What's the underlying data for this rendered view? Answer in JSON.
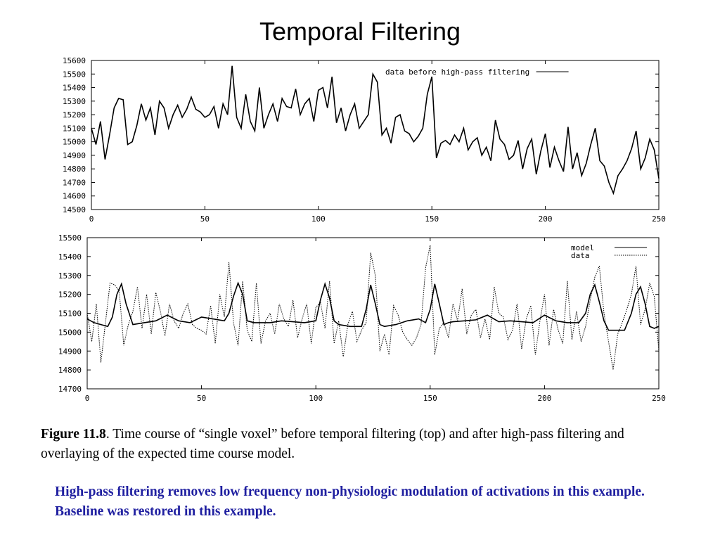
{
  "title": "Temporal Filtering",
  "caption": {
    "figure_label": "Figure 11.8",
    "text": ".  Time course of “single voxel” before temporal filtering (top) and after high-pass filtering and overlaying of the expected time course model."
  },
  "note": "High-pass filtering removes low frequency non-physiologic modulation of activations in this example. Baseline was restored in this example.",
  "colors": {
    "note_text": "#1f1fa0",
    "line": "#000000"
  },
  "chart_data": [
    {
      "type": "line",
      "xlim": [
        0,
        250
      ],
      "ylim": [
        14500,
        15600
      ],
      "x_ticks": [
        0,
        50,
        100,
        150,
        200,
        250
      ],
      "y_ticks": [
        14500,
        14600,
        14700,
        14800,
        14900,
        15000,
        15100,
        15200,
        15300,
        15400,
        15500,
        15600
      ],
      "legend_position": "top-right",
      "grid": false,
      "series": [
        {
          "name": "data before high-pass filtering",
          "style": "solid",
          "x": [
            0,
            2,
            4,
            6,
            8,
            10,
            12,
            14,
            16,
            18,
            20,
            22,
            24,
            26,
            28,
            30,
            32,
            34,
            36,
            38,
            40,
            42,
            44,
            46,
            48,
            50,
            52,
            54,
            56,
            58,
            60,
            62,
            64,
            66,
            68,
            70,
            72,
            74,
            76,
            78,
            80,
            82,
            84,
            86,
            88,
            90,
            92,
            94,
            96,
            98,
            100,
            102,
            104,
            106,
            108,
            110,
            112,
            114,
            116,
            118,
            120,
            122,
            124,
            126,
            128,
            130,
            132,
            134,
            136,
            138,
            140,
            142,
            144,
            146,
            148,
            150,
            152,
            154,
            156,
            158,
            160,
            162,
            164,
            166,
            168,
            170,
            172,
            174,
            176,
            178,
            180,
            182,
            184,
            186,
            188,
            190,
            192,
            194,
            196,
            198,
            200,
            202,
            204,
            206,
            208,
            210,
            212,
            214,
            216,
            218,
            220,
            222,
            224,
            226,
            228,
            230,
            232,
            234,
            236,
            238,
            240,
            242,
            244,
            246,
            248,
            250
          ],
          "values": [
            15100,
            14980,
            15150,
            14870,
            15050,
            15250,
            15320,
            15310,
            14980,
            15000,
            15120,
            15280,
            15160,
            15250,
            15050,
            15300,
            15250,
            15100,
            15200,
            15270,
            15180,
            15240,
            15330,
            15240,
            15220,
            15180,
            15200,
            15260,
            15100,
            15280,
            15200,
            15560,
            15180,
            15100,
            15350,
            15150,
            15080,
            15400,
            15100,
            15200,
            15280,
            15150,
            15320,
            15260,
            15250,
            15390,
            15200,
            15280,
            15320,
            15150,
            15380,
            15400,
            15250,
            15480,
            15140,
            15250,
            15080,
            15200,
            15280,
            15100,
            15150,
            15200,
            15500,
            15440,
            15050,
            15100,
            14990,
            15180,
            15200,
            15080,
            15060,
            15000,
            15040,
            15100,
            15350,
            15480,
            14880,
            14990,
            15010,
            14980,
            15050,
            15000,
            15100,
            14940,
            15000,
            15030,
            14900,
            14960,
            14860,
            15160,
            15020,
            14980,
            14870,
            14900,
            15010,
            14800,
            14950,
            15020,
            14760,
            14930,
            15060,
            14810,
            14960,
            14860,
            14780,
            15110,
            14800,
            14920,
            14750,
            14840,
            14980,
            15100,
            14860,
            14820,
            14700,
            14620,
            14750,
            14800,
            14860,
            14950,
            15080,
            14800,
            14880,
            15020,
            14940,
            14730
          ]
        }
      ]
    },
    {
      "type": "line",
      "xlim": [
        0,
        250
      ],
      "ylim": [
        14700,
        15500
      ],
      "x_ticks": [
        0,
        50,
        100,
        150,
        200,
        250
      ],
      "y_ticks": [
        14700,
        14800,
        14900,
        15000,
        15100,
        15200,
        15300,
        15400,
        15500
      ],
      "legend_position": "top-right",
      "grid": false,
      "series": [
        {
          "name": "model",
          "style": "solid",
          "x": [
            0,
            3,
            6,
            9,
            11,
            13,
            15,
            17,
            20,
            25,
            30,
            35,
            40,
            45,
            50,
            55,
            60,
            62,
            64,
            66,
            68,
            70,
            73,
            80,
            85,
            90,
            95,
            100,
            102,
            104,
            106,
            108,
            110,
            115,
            120,
            122,
            124,
            126,
            128,
            130,
            135,
            140,
            145,
            148,
            150,
            152,
            154,
            156,
            158,
            160,
            165,
            170,
            175,
            180,
            185,
            190,
            195,
            200,
            205,
            210,
            215,
            218,
            220,
            222,
            224,
            226,
            228,
            230,
            235,
            238,
            240,
            242,
            244,
            246,
            248,
            250
          ],
          "values": [
            15070,
            15050,
            15040,
            15030,
            15080,
            15200,
            15255,
            15150,
            15040,
            15050,
            15060,
            15090,
            15060,
            15050,
            15080,
            15070,
            15060,
            15100,
            15190,
            15260,
            15200,
            15060,
            15050,
            15050,
            15060,
            15055,
            15050,
            15060,
            15170,
            15255,
            15180,
            15060,
            15040,
            15030,
            15030,
            15120,
            15250,
            15150,
            15040,
            15030,
            15040,
            15060,
            15070,
            15050,
            15120,
            15255,
            15150,
            15040,
            15050,
            15055,
            15060,
            15065,
            15090,
            15055,
            15060,
            15055,
            15050,
            15090,
            15060,
            15050,
            15050,
            15100,
            15200,
            15250,
            15160,
            15060,
            15010,
            15010,
            15010,
            15100,
            15200,
            15240,
            15150,
            15030,
            15020,
            15030
          ]
        },
        {
          "name": "data",
          "style": "dotted",
          "x": [
            0,
            2,
            4,
            6,
            8,
            10,
            12,
            14,
            16,
            18,
            20,
            22,
            24,
            26,
            28,
            30,
            32,
            34,
            36,
            38,
            40,
            42,
            44,
            46,
            48,
            50,
            52,
            54,
            56,
            58,
            60,
            62,
            64,
            66,
            68,
            70,
            72,
            74,
            76,
            78,
            80,
            82,
            84,
            86,
            88,
            90,
            92,
            94,
            96,
            98,
            100,
            102,
            104,
            106,
            108,
            110,
            112,
            114,
            116,
            118,
            120,
            122,
            124,
            126,
            128,
            130,
            132,
            134,
            136,
            138,
            140,
            142,
            144,
            146,
            148,
            150,
            152,
            154,
            156,
            158,
            160,
            162,
            164,
            166,
            168,
            170,
            172,
            174,
            176,
            178,
            180,
            182,
            184,
            186,
            188,
            190,
            192,
            194,
            196,
            198,
            200,
            202,
            204,
            206,
            208,
            210,
            212,
            214,
            216,
            218,
            220,
            222,
            224,
            226,
            228,
            230,
            232,
            234,
            236,
            238,
            240,
            242,
            244,
            246,
            248,
            250
          ],
          "values": [
            15100,
            14950,
            15150,
            14840,
            15050,
            15260,
            15250,
            15220,
            14930,
            15040,
            15110,
            15240,
            15020,
            15200,
            14990,
            15210,
            15110,
            14980,
            15150,
            15060,
            15020,
            15100,
            15150,
            15040,
            15020,
            15010,
            14990,
            15140,
            14940,
            15200,
            15080,
            15370,
            15050,
            14930,
            15270,
            15010,
            14950,
            15260,
            14940,
            15060,
            15100,
            14990,
            15150,
            15070,
            15030,
            15170,
            14970,
            15070,
            15150,
            14940,
            15130,
            15160,
            15020,
            15270,
            14940,
            15060,
            14870,
            15040,
            15110,
            14950,
            15010,
            15050,
            15420,
            15300,
            14900,
            14990,
            14880,
            15140,
            15090,
            15000,
            14960,
            14930,
            14970,
            15040,
            15340,
            15460,
            14880,
            15020,
            15050,
            14970,
            15150,
            15060,
            15230,
            14990,
            15090,
            15120,
            14970,
            15070,
            14960,
            15240,
            15100,
            15080,
            14960,
            15010,
            15150,
            14910,
            15070,
            15140,
            14880,
            15060,
            15200,
            14930,
            15120,
            15010,
            14940,
            15270,
            14960,
            15110,
            14950,
            15030,
            15170,
            15290,
            15350,
            15100,
            14950,
            14800,
            14990,
            15050,
            15120,
            15200,
            15350,
            15040,
            15120,
            15260,
            15190,
            14900
          ]
        }
      ]
    }
  ]
}
